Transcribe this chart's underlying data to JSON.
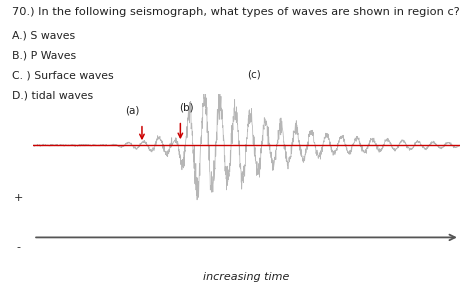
{
  "title": "70.) In the following seismograph, what types of waves are shown in region c?",
  "choices": [
    "A.) S waves",
    "B.) P Waves",
    "C. ) Surface waves",
    "D.) tidal waves"
  ],
  "xlabel": "increasing time",
  "plus_label": "+",
  "minus_label": "-",
  "bg_color": "#ffffff",
  "wave_color": "#b0b0b0",
  "red_line_color": "#cc0000",
  "arrow_color": "#cc0000",
  "text_color": "#222222",
  "label_a": "(a)",
  "label_b": "(b)",
  "label_c": "(c)",
  "title_fontsize": 8.2,
  "choices_fontsize": 7.8,
  "label_fontsize": 7.5,
  "axis_arrow_color": "#555555"
}
